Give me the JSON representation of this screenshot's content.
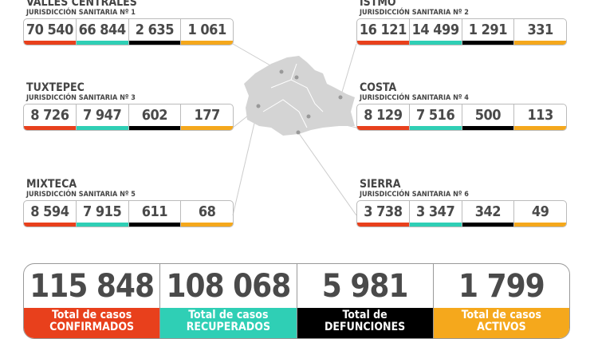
{
  "colors": {
    "confirmados": "#e8401c",
    "recuperados": "#2fcfb5",
    "defunciones": "#000000",
    "activos": "#f5a81c",
    "map": "#d4d4d4"
  },
  "regions": [
    {
      "title": "VALLES CENTRALES",
      "subtitle": "JURISDICCIÓN SANITARIA Nº 1",
      "values": [
        "70 540",
        "66 844",
        "2 635",
        "1 061"
      ]
    },
    {
      "title": "ISTMO",
      "subtitle": "JURISDICCIÓN SANITARIA Nº 2",
      "values": [
        "16 121",
        "14 499",
        "1 291",
        "331"
      ]
    },
    {
      "title": "TUXTEPEC",
      "subtitle": "JURISDICCIÓN SANITARIA Nº 3",
      "values": [
        "8 726",
        "7 947",
        "602",
        "177"
      ]
    },
    {
      "title": "COSTA",
      "subtitle": "JURISDICCIÓN SANITARIA Nº 4",
      "values": [
        "8 129",
        "7 516",
        "500",
        "113"
      ]
    },
    {
      "title": "MIXTECA",
      "subtitle": "JURISDICCIÓN SANITARIA Nº 5",
      "values": [
        "8 594",
        "7 915",
        "611",
        "68"
      ]
    },
    {
      "title": "SIERRA",
      "subtitle": "JURISDICCIÓN SANITARIA Nº 6",
      "values": [
        "3 738",
        "3 347",
        "342",
        "49"
      ]
    }
  ],
  "totals": [
    {
      "value": "115 848",
      "line1": "Total de casos",
      "line2": "CONFIRMADOS"
    },
    {
      "value": "108 068",
      "line1": "Total de casos",
      "line2": "RECUPERADOS"
    },
    {
      "value": "5 981",
      "line1": "Total de",
      "line2": "DEFUNCIONES"
    },
    {
      "value": "1 799",
      "line1": "Total de casos",
      "line2": "ACTIVOS"
    }
  ]
}
